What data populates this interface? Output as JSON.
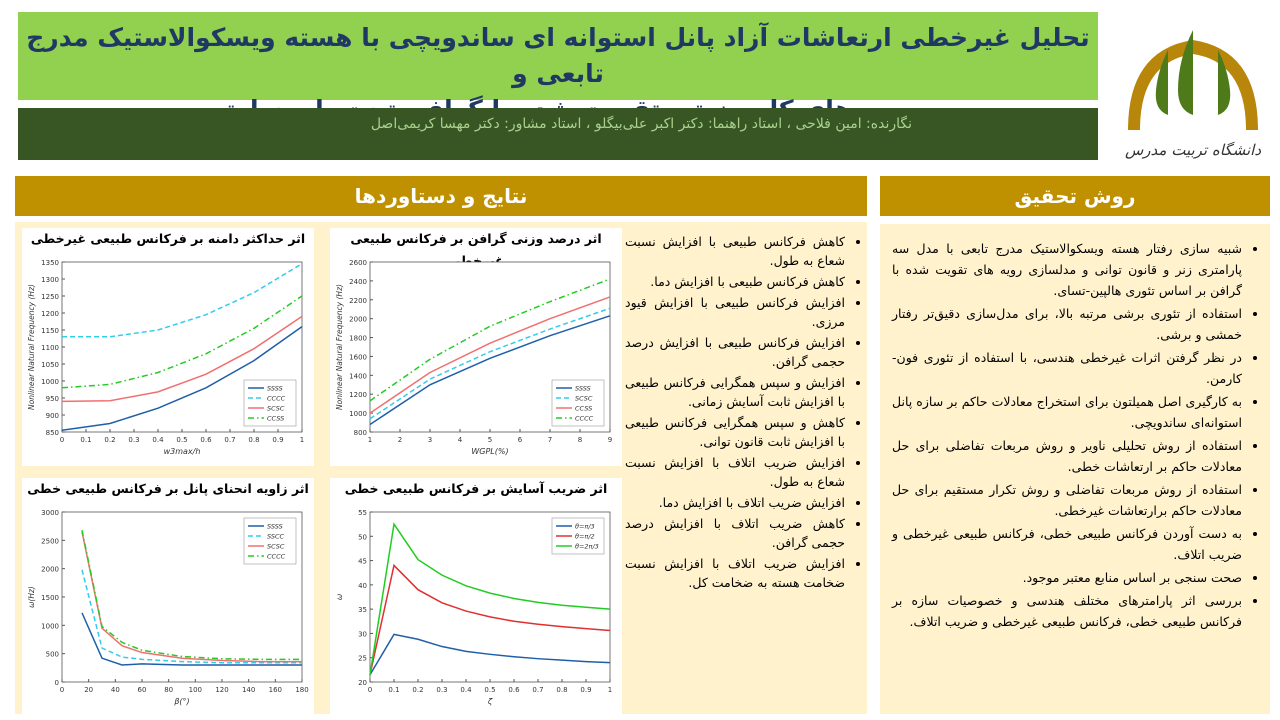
{
  "header": {
    "title_lines": [
      "تحلیل غیرخطی ارتعاشات آزاد پانل استوانه ای ساندویچی با هسته ویسکوالاستیک مدرج تابعی و",
      "رویه های کامپوزیتی تقویت شده با گرافن تحت بار حرارتی"
    ],
    "authors": "نگارنده: امین فلاحی ، استاد راهنما: دکتر اکبر علی‌بیگلو ، استاد مشاور: دکتر مهسا کریمی‌اصل",
    "logo_text": "دانشگاه تربیت مدرس"
  },
  "results": {
    "title": "نتایج و دستاوردها",
    "items": [
      "کاهش فرکانس طبیعی با افزایش نسبت شعاع به طول.",
      "کاهش فرکانس طبیعی با افزایش دما.",
      "افزایش فرکانس طبیعی با افزایش قیود مرزی.",
      "افزایش فرکانس طبیعی با افزایش درصد حجمی گرافن.",
      "افزایش و سپس همگرایی فرکانس طبیعی با افزایش ثابت آسایش زمانی.",
      "کاهش و سپس همگرایی فرکانس طبیعی با افزایش ثابت قانون توانی.",
      "افزایش ضریب اتلاف با افزایش نسبت شعاع به طول.",
      "افزایش ضریب اتلاف با افزایش دما.",
      "کاهش ضریب اتلاف با افزایش درصد حجمی گرافن.",
      "افزایش ضریب اتلاف با افزایش نسبت ضخامت هسته به ضخامت کل."
    ]
  },
  "method": {
    "title": "روش تحقیق",
    "items": [
      "شبیه سازی رفتار هسته ویسکوالاستیک مدرج تابعی با مدل سه پارامتری زنر و قانون توانی و مدلسازی رویه های تقویت شده با گرافن بر اساس تئوری هالپین-تسای.",
      "استفاده از تئوری برشی مرتبه بالا، برای مدل‌سازی دقیق‌تر رفتار خمشی و برشی.",
      "در نظر گرفتن اثرات غیرخطی هندسی، با استفاده از تئوری فون-کارمن.",
      "به کارگیری اصل همیلتون برای استخراج معادلات حاکم بر سازه پانل استوانه‌ای ساندویچی.",
      "استفاده از روش تحلیلی ناویر و روش مربعات تفاضلی برای حل معادلات حاکم بر ارتعاشات خطی.",
      "استفاده از روش مربعات تفاضلی و روش تکرار مستقیم برای حل معادلات حاکم برارتعاشات غیرخطی.",
      "به دست آوردن فرکانس طبیعی خطی، فرکانس طبیعی غیرخطی و ضریب اتلاف.",
      "صحت سنجی بر اساس منابع معتبر موجود.",
      "بررسی اثر پارامترهای مختلف هندسی و خصوصیات سازه بر فرکانس طبیعی خطی، فرکانس طبیعی غیرخطی و ضریب اتلاف."
    ]
  },
  "chart_data": [
    {
      "type": "line",
      "title": "اثر حداکثر دامنه بر فرکانس طبیعی غیرخطی",
      "xlabel": "w3max/h",
      "ylabel": "Nonlinear Natural Frequency (Hz)",
      "x": [
        0,
        0.2,
        0.4,
        0.6,
        0.8,
        1
      ],
      "xlim": [
        0,
        1
      ],
      "xticks": [
        0,
        0.1,
        0.2,
        0.3,
        0.4,
        0.5,
        0.6,
        0.7,
        0.8,
        0.9,
        1
      ],
      "ylim": [
        850,
        1350
      ],
      "yticks": [
        850,
        900,
        950,
        1000,
        1050,
        1100,
        1150,
        1200,
        1250,
        1300,
        1350
      ],
      "legend": "lower right",
      "series": [
        {
          "name": "SSSS",
          "color": "#1f5fa8",
          "linestyle": "solid",
          "values": [
            855,
            875,
            920,
            980,
            1060,
            1160
          ]
        },
        {
          "name": "CCCC",
          "color": "#33ccee",
          "linestyle": "dashed",
          "values": [
            1130,
            1130,
            1150,
            1195,
            1260,
            1345
          ]
        },
        {
          "name": "SCSC",
          "color": "#f07070",
          "linestyle": "solid",
          "values": [
            940,
            942,
            968,
            1020,
            1095,
            1190
          ]
        },
        {
          "name": "CCSS",
          "color": "#22cc22",
          "linestyle": "dashdot",
          "values": [
            980,
            990,
            1025,
            1080,
            1155,
            1250
          ]
        }
      ]
    },
    {
      "type": "line",
      "title": "اثر درصد وزنی گرافن بر فرکانس طبیعی غیرخطی",
      "xlabel": "WGPL(%)",
      "ylabel": "Nonlinear Natural Frequency (Hz)",
      "x": [
        1,
        3,
        5,
        7,
        9
      ],
      "xlim": [
        1,
        9
      ],
      "xticks": [
        1,
        2,
        3,
        4,
        5,
        6,
        7,
        8,
        9
      ],
      "ylim": [
        800,
        2600
      ],
      "yticks": [
        800,
        1000,
        1200,
        1400,
        1600,
        1800,
        2000,
        2200,
        2400,
        2600
      ],
      "legend": "lower right",
      "series": [
        {
          "name": "SSSS",
          "color": "#1f5fa8",
          "linestyle": "solid",
          "values": [
            880,
            1300,
            1580,
            1820,
            2030
          ]
        },
        {
          "name": "SCSC",
          "color": "#33ccee",
          "linestyle": "dashed",
          "values": [
            940,
            1360,
            1650,
            1890,
            2110
          ]
        },
        {
          "name": "CCSS",
          "color": "#f07070",
          "linestyle": "solid",
          "values": [
            1000,
            1430,
            1740,
            2000,
            2230
          ]
        },
        {
          "name": "CCCC",
          "color": "#22cc22",
          "linestyle": "dashdot",
          "values": [
            1130,
            1570,
            1920,
            2180,
            2420
          ]
        }
      ]
    },
    {
      "type": "line",
      "title": "اثر زاویه انحنای پانل بر فرکانس طبیعی خطی",
      "xlabel": "β(°)",
      "ylabel": "ω(Hz)",
      "x": [
        15,
        30,
        45,
        60,
        90,
        120,
        150,
        180
      ],
      "xlim": [
        0,
        180
      ],
      "xticks": [
        0,
        20,
        40,
        60,
        80,
        100,
        120,
        140,
        160,
        180
      ],
      "ylim": [
        0,
        3000
      ],
      "yticks": [
        0,
        500,
        1000,
        1500,
        2000,
        2500,
        3000
      ],
      "legend": "upper right",
      "series": [
        {
          "name": "SSSS",
          "color": "#1f5fa8",
          "linestyle": "solid",
          "values": [
            1220,
            420,
            300,
            320,
            300,
            300,
            300,
            300
          ]
        },
        {
          "name": "SSCC",
          "color": "#33ccee",
          "linestyle": "dashed",
          "values": [
            1980,
            600,
            440,
            400,
            360,
            340,
            340,
            340
          ]
        },
        {
          "name": "SCSC",
          "color": "#f07070",
          "linestyle": "solid",
          "values": [
            2650,
            950,
            640,
            520,
            420,
            380,
            360,
            360
          ]
        },
        {
          "name": "CCCC",
          "color": "#22cc22",
          "linestyle": "dashdot",
          "values": [
            2680,
            980,
            700,
            560,
            450,
            410,
            400,
            400
          ]
        }
      ]
    },
    {
      "type": "line",
      "title": "اثر ضریب آسایش بر فرکانس طبیعی خطی",
      "xlabel": "ζ",
      "ylabel": "ω",
      "x": [
        0,
        0.1,
        0.2,
        0.3,
        0.4,
        0.5,
        0.6,
        0.7,
        0.8,
        0.9,
        1
      ],
      "xlim": [
        0,
        1
      ],
      "xticks": [
        0,
        0.1,
        0.2,
        0.3,
        0.4,
        0.5,
        0.6,
        0.7,
        0.8,
        0.9,
        1
      ],
      "ylim": [
        20,
        55
      ],
      "yticks": [
        20,
        25,
        30,
        35,
        40,
        45,
        50,
        55
      ],
      "legend": "upper right",
      "series": [
        {
          "name": "θ=π/3",
          "color": "#1f5fa8",
          "linestyle": "solid",
          "values": [
            21.5,
            29.8,
            28.8,
            27.3,
            26.3,
            25.7,
            25.2,
            24.8,
            24.5,
            24.2,
            24
          ]
        },
        {
          "name": "θ=π/2",
          "color": "#e03030",
          "linestyle": "solid",
          "values": [
            21.5,
            44,
            39,
            36.3,
            34.6,
            33.4,
            32.5,
            31.9,
            31.4,
            31,
            30.6
          ]
        },
        {
          "name": "θ=2π/3",
          "color": "#22cc22",
          "linestyle": "solid",
          "values": [
            21.5,
            52.5,
            45.2,
            42,
            39.8,
            38.3,
            37.2,
            36.4,
            35.8,
            35.4,
            35
          ]
        }
      ]
    }
  ]
}
